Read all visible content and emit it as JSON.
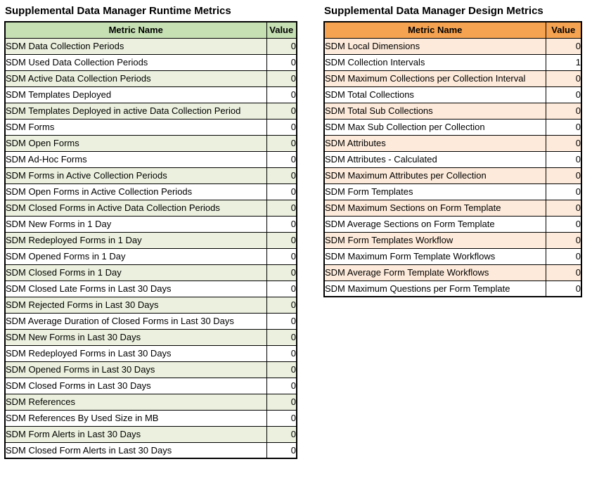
{
  "tables": [
    {
      "title": "Supplemental Data Manager Runtime Metrics",
      "columns": [
        "Metric Name",
        "Value"
      ],
      "colors": {
        "header_bg": "#c6e0b4",
        "alt_row_bg": "#ebf1de",
        "row_bg": "#ffffff",
        "border": "#000000"
      },
      "rows": [
        {
          "name": "SDM Data Collection Periods",
          "value": "0"
        },
        {
          "name": "SDM Used Data Collection Periods",
          "value": "0"
        },
        {
          "name": "SDM Active Data Collection Periods",
          "value": "0"
        },
        {
          "name": "SDM Templates Deployed",
          "value": "0"
        },
        {
          "name": "SDM Templates Deployed in active Data Collection Period",
          "value": "0"
        },
        {
          "name": "SDM Forms",
          "value": "0"
        },
        {
          "name": "SDM Open Forms",
          "value": "0"
        },
        {
          "name": "SDM Ad-Hoc Forms",
          "value": "0"
        },
        {
          "name": "SDM Forms in Active Collection Periods",
          "value": "0"
        },
        {
          "name": "SDM Open Forms in Active Collection Periods",
          "value": "0"
        },
        {
          "name": "SDM Closed Forms in Active Data Collection Periods",
          "value": "0"
        },
        {
          "name": "SDM New Forms in 1 Day",
          "value": "0"
        },
        {
          "name": "SDM Redeployed Forms in 1 Day",
          "value": "0"
        },
        {
          "name": "SDM Opened Forms in 1 Day",
          "value": "0"
        },
        {
          "name": "SDM Closed Forms in 1 Day",
          "value": "0"
        },
        {
          "name": "SDM Closed Late Forms in Last 30 Days",
          "value": "0"
        },
        {
          "name": "SDM Rejected Forms in Last 30 Days",
          "value": "0"
        },
        {
          "name": "SDM Average Duration of Closed Forms in Last 30 Days",
          "value": "0"
        },
        {
          "name": "SDM New Forms in Last 30 Days",
          "value": "0"
        },
        {
          "name": "SDM Redeployed Forms in Last 30 Days",
          "value": "0"
        },
        {
          "name": "SDM Opened Forms in Last 30 Days",
          "value": "0"
        },
        {
          "name": "SDM Closed Forms in Last 30 Days",
          "value": "0"
        },
        {
          "name": "SDM References",
          "value": "0"
        },
        {
          "name": "SDM References By Used Size in MB",
          "value": "0"
        },
        {
          "name": "SDM Form Alerts in Last 30 Days",
          "value": "0"
        },
        {
          "name": "SDM Closed Form Alerts in Last 30 Days",
          "value": "0"
        }
      ]
    },
    {
      "title": "Supplemental Data Manager Design Metrics",
      "columns": [
        "Metric Name",
        "Value"
      ],
      "colors": {
        "header_bg": "#f6a351",
        "alt_row_bg": "#fdeada",
        "row_bg": "#ffffff",
        "border": "#000000"
      },
      "rows": [
        {
          "name": "SDM Local Dimensions",
          "value": "0"
        },
        {
          "name": "SDM Collection Intervals",
          "value": "1"
        },
        {
          "name": "SDM Maximum Collections per Collection Interval",
          "value": "0"
        },
        {
          "name": "SDM Total Collections",
          "value": "0"
        },
        {
          "name": "SDM Total Sub Collections",
          "value": "0"
        },
        {
          "name": "SDM Max Sub Collection per Collection",
          "value": "0"
        },
        {
          "name": "SDM Attributes",
          "value": "0"
        },
        {
          "name": "SDM Attributes - Calculated",
          "value": "0"
        },
        {
          "name": "SDM Maximum Attributes per Collection",
          "value": "0"
        },
        {
          "name": "SDM Form Templates",
          "value": "0"
        },
        {
          "name": "SDM Maximum Sections on Form Template",
          "value": "0"
        },
        {
          "name": "SDM Average Sections on Form Template",
          "value": "0"
        },
        {
          "name": "SDM Form Templates Workflow",
          "value": "0"
        },
        {
          "name": "SDM Maximum Form Template Workflows",
          "value": "0"
        },
        {
          "name": "SDM Average Form Template Workflows",
          "value": "0"
        },
        {
          "name": "SDM Maximum Questions per Form Template",
          "value": "0"
        }
      ]
    }
  ]
}
